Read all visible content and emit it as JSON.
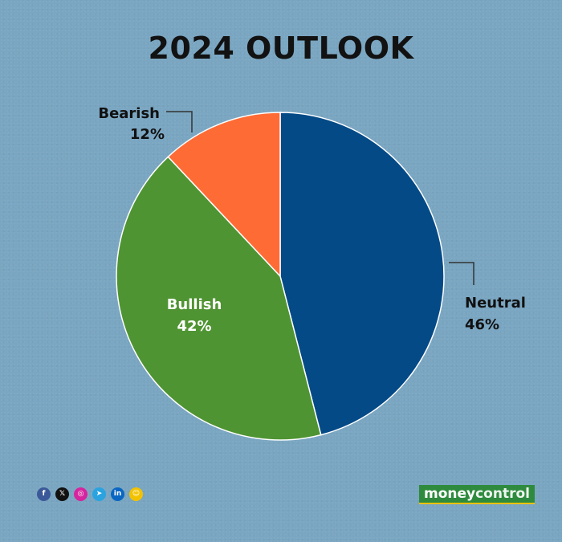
{
  "title": "2024 OUTLOOK",
  "chart_data": {
    "type": "pie",
    "title": "2024 OUTLOOK",
    "slices": [
      {
        "label": "Neutral",
        "value": 46,
        "value_label": "46%",
        "color": "#044a87"
      },
      {
        "label": "Bullish",
        "value": 42,
        "value_label": "42%",
        "color": "#4f9432"
      },
      {
        "label": "Bearish",
        "value": 12,
        "value_label": "12%",
        "color": "#ff6b35"
      }
    ],
    "start": "12 o'clock",
    "direction": "clockwise",
    "label_placement": {
      "Neutral": "outside-right",
      "Bullish": "inside",
      "Bearish": "outside-top-left"
    }
  },
  "social_icons": [
    {
      "icon": "facebook-icon",
      "glyph": "f",
      "color": "#3b5998"
    },
    {
      "icon": "x-icon",
      "glyph": "𝕏",
      "color": "#111111"
    },
    {
      "icon": "instagram-icon",
      "glyph": "◎",
      "color": "#d6249f"
    },
    {
      "icon": "telegram-icon",
      "glyph": "➤",
      "color": "#2aa3e0"
    },
    {
      "icon": "linkedin-icon",
      "glyph": "in",
      "color": "#0a66c2"
    },
    {
      "icon": "snapchat-icon",
      "glyph": "☺",
      "color": "#f2c200"
    }
  ],
  "brand": {
    "part1": "money",
    "part2": "control",
    "color": "#2e8b3d"
  }
}
